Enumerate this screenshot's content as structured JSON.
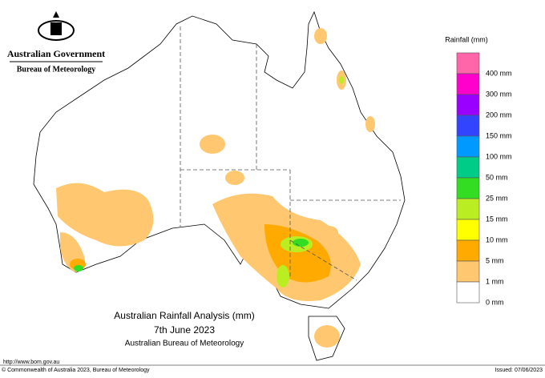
{
  "header": {
    "government": "Australian Government",
    "agency": "Bureau of Meteorology"
  },
  "legend": {
    "title": "Rainfall (mm)",
    "items": [
      {
        "color": "#ff66aa",
        "label": "400 mm"
      },
      {
        "color": "#ff00cc",
        "label": "300 mm"
      },
      {
        "color": "#9900ff",
        "label": "200 mm"
      },
      {
        "color": "#3344ff",
        "label": "150 mm"
      },
      {
        "color": "#0099ff",
        "label": "100 mm"
      },
      {
        "color": "#00cc88",
        "label": "50 mm"
      },
      {
        "color": "#33dd22",
        "label": "25 mm"
      },
      {
        "color": "#bbee22",
        "label": "15 mm"
      },
      {
        "color": "#ffff00",
        "label": "10 mm"
      },
      {
        "color": "#ffaa00",
        "label": "5 mm"
      },
      {
        "color": "#ffc870",
        "label": "1 mm"
      },
      {
        "color": "#ffffff",
        "label": "0 mm"
      }
    ]
  },
  "title": {
    "line1": "Australian Rainfall Analysis (mm)",
    "line2": "7th June 2023",
    "line3": "Australian Bureau of Meteorology"
  },
  "footer": {
    "url": "http://www.bom.gov.au",
    "copyright": "© Commonwealth of Australia 2023, Bureau of Meteorology",
    "issued": "Issued: 07/06/2023"
  }
}
